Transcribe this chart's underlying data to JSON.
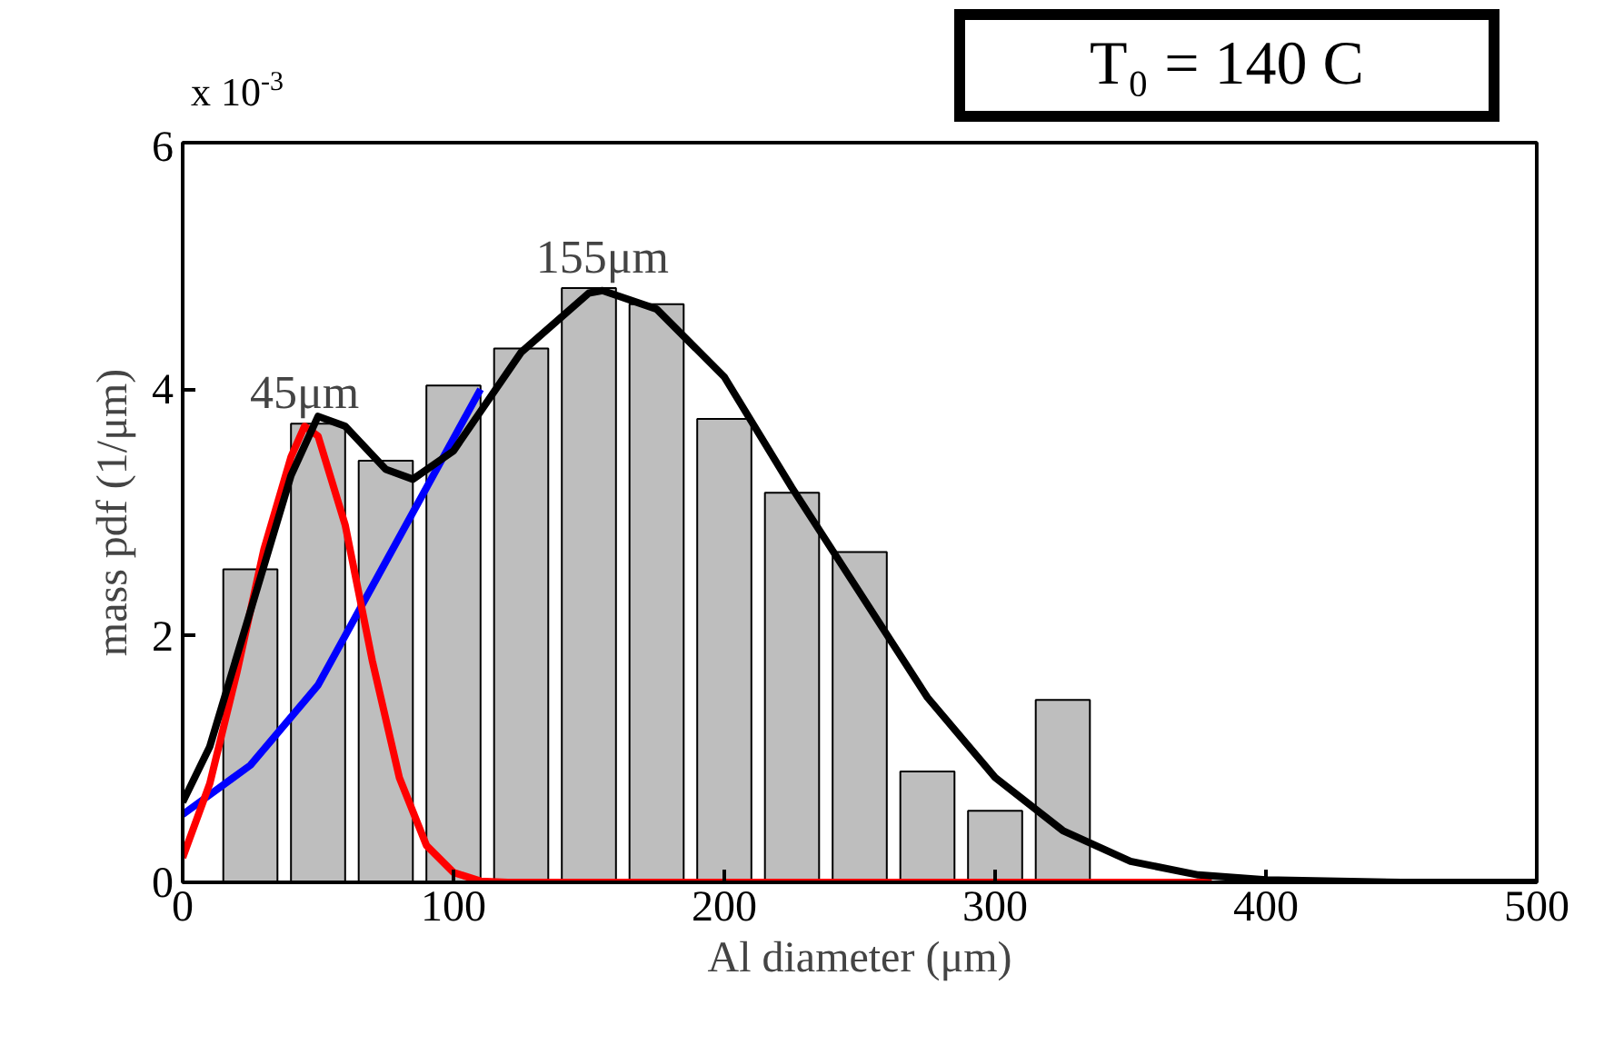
{
  "chart_data": {
    "type": "bar",
    "xlabel": "Al diameter (μm)",
    "ylabel": "mass pdf (1/μm)",
    "x": [
      25,
      50,
      75,
      100,
      125,
      150,
      175,
      200,
      225,
      250,
      275,
      300,
      325
    ],
    "xlim": [
      0,
      500
    ],
    "xticks": [
      0,
      100,
      200,
      300,
      400,
      500
    ],
    "ylim": [
      0,
      6
    ],
    "yticks": [
      0,
      2,
      4,
      6
    ],
    "grid": false,
    "series": [
      {
        "color": "#bebebe",
        "values": [
          2.54,
          3.72,
          3.42,
          4.03,
          4.33,
          4.82,
          4.69,
          3.76,
          3.16,
          2.68,
          0.9,
          0.58,
          1.48
        ]
      },
      {
        "type": "line",
        "color": "#0000ff",
        "x": [
          0,
          25,
          50,
          75,
          100,
          110
        ],
        "values": [
          0.55,
          0.95,
          1.6,
          2.6,
          3.6,
          4.0
        ]
      },
      {
        "type": "line",
        "color": "#ff0000",
        "x": [
          0,
          10,
          20,
          30,
          40,
          45,
          50,
          60,
          70,
          80,
          90,
          100,
          110,
          120,
          200,
          300,
          380
        ],
        "values": [
          0.2,
          0.8,
          1.7,
          2.7,
          3.45,
          3.7,
          3.62,
          2.9,
          1.8,
          0.85,
          0.3,
          0.08,
          0.01,
          0,
          0,
          0,
          0
        ]
      },
      {
        "type": "line",
        "color": "#000000",
        "x": [
          0,
          10,
          25,
          40,
          50,
          60,
          75,
          85,
          100,
          125,
          150,
          155,
          175,
          200,
          225,
          250,
          275,
          300,
          325,
          350,
          375,
          400,
          450,
          500
        ],
        "values": [
          0.65,
          1.1,
          2.2,
          3.3,
          3.78,
          3.7,
          3.35,
          3.27,
          3.5,
          4.3,
          4.78,
          4.8,
          4.65,
          4.1,
          3.2,
          2.35,
          1.5,
          0.85,
          0.42,
          0.17,
          0.06,
          0.02,
          0,
          0
        ]
      }
    ],
    "annotations": [
      {
        "text": "45μm",
        "x": 45,
        "y": 3.7
      },
      {
        "text": "155μm",
        "x": 155,
        "y": 4.8
      },
      "x 10$^{-3}$",
      "T₀ = 140 C"
    ]
  }
}
